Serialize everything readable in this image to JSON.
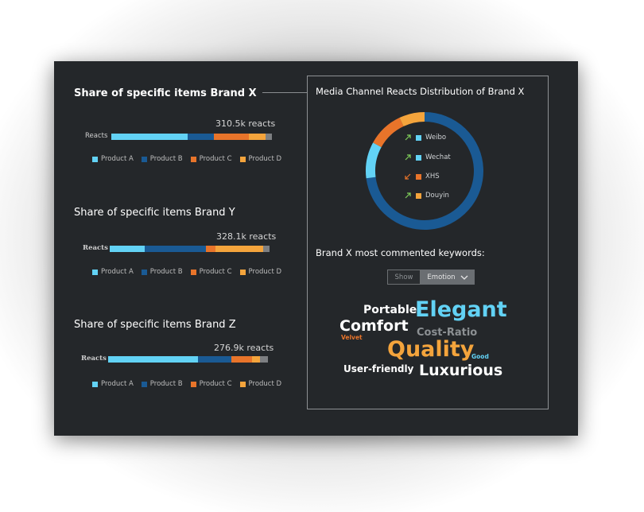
{
  "colors": {
    "product_a": "#62d2f5",
    "product_b": "#1a5a94",
    "product_c": "#e8742a",
    "product_d": "#f4a43c",
    "other": "#7d7f82",
    "weibo": "#1a5a94",
    "wechat": "#62d2f5",
    "xhs": "#e8742a",
    "douyin": "#f4a43c",
    "arrow_up": "#7fcf5a",
    "arrow_down": "#e8742a"
  },
  "legend_labels": [
    "Product A",
    "Product B",
    "Product C",
    "Product D"
  ],
  "chart_data": [
    {
      "type": "bar",
      "title": "Share of specific items Brand X",
      "categories": [
        "Reacts"
      ],
      "total_label": "310.5k reacts",
      "series": [
        {
          "name": "Product A",
          "values": [
            46
          ]
        },
        {
          "name": "Product B",
          "values": [
            16
          ]
        },
        {
          "name": "Product C",
          "values": [
            21
          ]
        },
        {
          "name": "Product D",
          "values": [
            10
          ]
        },
        {
          "values": [
            4
          ]
        }
      ]
    },
    {
      "type": "bar",
      "title": "Share of specific items Brand Y",
      "categories": [
        "Reacts"
      ],
      "total_label": "328.1k reacts",
      "series": [
        {
          "name": "Product A",
          "values": [
            22
          ]
        },
        {
          "name": "Product B",
          "values": [
            38
          ]
        },
        {
          "name": "Product C",
          "values": [
            6
          ]
        },
        {
          "name": "Product D",
          "values": [
            30
          ]
        },
        {
          "values": [
            4
          ]
        }
      ]
    },
    {
      "type": "bar",
      "title": "Share of specific items Brand Z",
      "categories": [
        "Reacts"
      ],
      "total_label": "276.9k reacts",
      "series": [
        {
          "name": "Product A",
          "values": [
            56
          ]
        },
        {
          "name": "Product B",
          "values": [
            21
          ]
        },
        {
          "name": "Product C",
          "values": [
            13
          ]
        },
        {
          "name": "Product D",
          "values": [
            5
          ]
        },
        {
          "values": [
            5
          ]
        }
      ]
    },
    {
      "type": "pie",
      "title": "Media Channel Reacts Distribution of Brand X",
      "categories": [
        "Weibo",
        "Wechat",
        "XHS",
        "Douyin"
      ],
      "values": [
        73,
        10,
        10,
        7
      ],
      "trends": [
        "up",
        "up",
        "down",
        "up"
      ]
    }
  ],
  "keywords_title": "Brand X most commented keywords:",
  "toggle": {
    "show_label": "Show",
    "selected_label": "Emotion"
  },
  "keywords": [
    {
      "text": "Portable",
      "color": "#ffffff"
    },
    {
      "text": "Elegant",
      "color": "#62d2f5"
    },
    {
      "text": "Comfort",
      "color": "#ffffff"
    },
    {
      "text": "Cost-Ratio",
      "color": "#8c9093"
    },
    {
      "text": "Velvet",
      "color": "#e8742a"
    },
    {
      "text": "Quality",
      "color": "#f4a43c"
    },
    {
      "text": "Good",
      "color": "#62d2f5"
    },
    {
      "text": "User-friendly",
      "color": "#ffffff"
    },
    {
      "text": "Luxurious",
      "color": "#ffffff"
    }
  ]
}
